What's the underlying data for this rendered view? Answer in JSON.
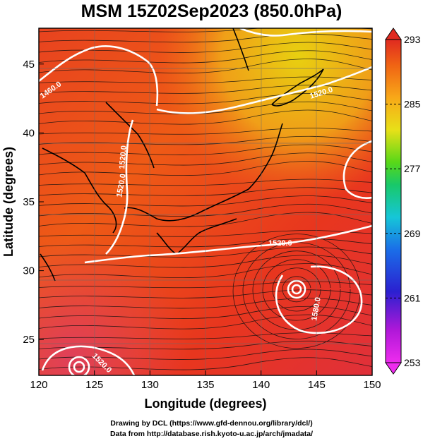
{
  "title": "MSM 15Z02Sep2023 (850.0hPa)",
  "x_axis": {
    "label": "Longitude (degrees)",
    "ticks": [
      120,
      125,
      130,
      135,
      140,
      145,
      150
    ],
    "range": [
      120,
      150
    ]
  },
  "y_axis": {
    "label": "Latitude  (degrees)",
    "ticks": [
      25,
      30,
      35,
      40,
      45
    ],
    "range": [
      22.4,
      47.6
    ]
  },
  "colorbar": {
    "ticks": [
      293,
      285,
      277,
      269,
      261,
      253
    ],
    "range": [
      253,
      293
    ],
    "colors": [
      "#ee2cee",
      "#b018d8",
      "#2b20d0",
      "#1a6ee8",
      "#16c6d8",
      "#18c86a",
      "#58d818",
      "#e8e018",
      "#f8a818",
      "#f06414",
      "#e02a20"
    ]
  },
  "contour_labels": [
    "1460.0",
    "1520.0",
    "1520.0",
    "1520.0",
    "1580.0",
    "1520.0",
    "1520.0"
  ],
  "credits": [
    "Drawing by DCL (https://www.gfd-dennou.org/library/dcl/)",
    "Data from http://database.rish.kyoto-u.ac.jp/arch/jmadata/"
  ]
}
